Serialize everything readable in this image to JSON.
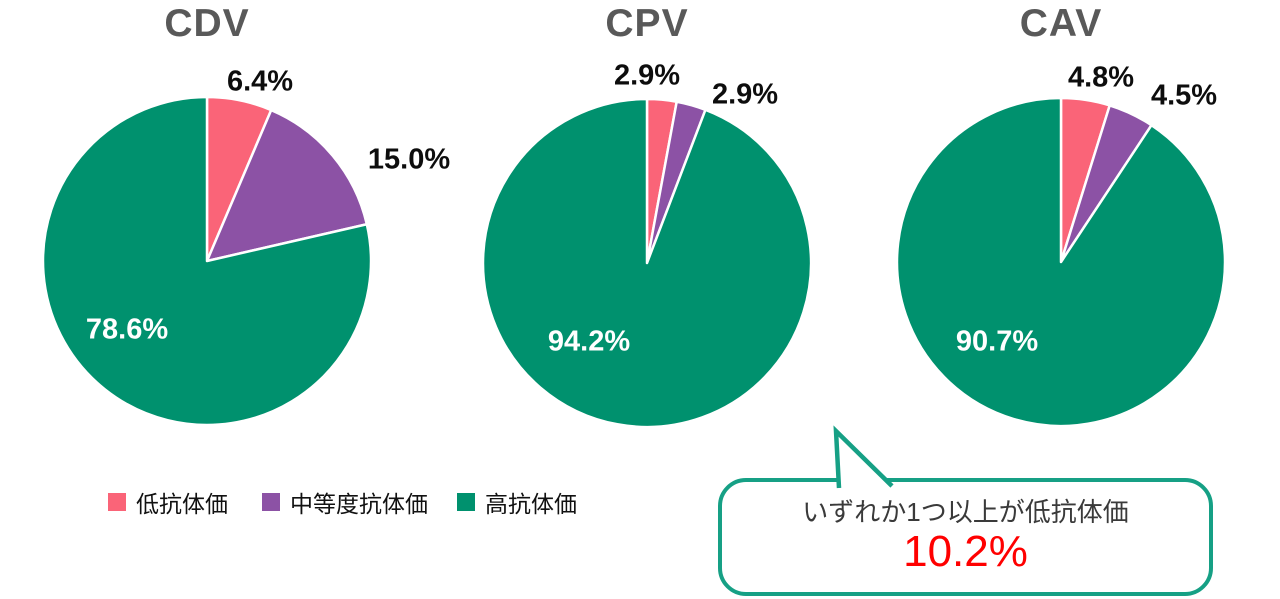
{
  "chart_data": [
    {
      "type": "pie",
      "title": "CDV",
      "categories": [
        "低抗体価",
        "中等度抗体価",
        "高抗体価"
      ],
      "values": [
        6.4,
        15.0,
        78.6
      ],
      "value_labels": [
        "6.4%",
        "15.0%",
        "78.6%"
      ],
      "colors": [
        "#fa6478",
        "#8c52a5",
        "#00916e"
      ],
      "unit": "%",
      "start_angle": "top",
      "direction": "clockwise"
    },
    {
      "type": "pie",
      "title": "CPV",
      "categories": [
        "低抗体価",
        "中等度抗体価",
        "高抗体価"
      ],
      "values": [
        2.9,
        2.9,
        94.2
      ],
      "value_labels": [
        "2.9%",
        "2.9%",
        "94.2%"
      ],
      "colors": [
        "#fa6478",
        "#8c52a5",
        "#00916e"
      ],
      "unit": "%",
      "start_angle": "top",
      "direction": "clockwise"
    },
    {
      "type": "pie",
      "title": "CAV",
      "categories": [
        "低抗体価",
        "中等度抗体価",
        "高抗体価"
      ],
      "values": [
        4.8,
        4.5,
        90.7
      ],
      "value_labels": [
        "4.8%",
        "4.5%",
        "90.7%"
      ],
      "colors": [
        "#fa6478",
        "#8c52a5",
        "#00916e"
      ],
      "unit": "%",
      "start_angle": "top",
      "direction": "clockwise"
    }
  ],
  "legend": {
    "items": [
      {
        "label": "低抗体価",
        "color": "#fa6478"
      },
      {
        "label": "中等度抗体価",
        "color": "#8c52a5"
      },
      {
        "label": "高抗体価",
        "color": "#00916e"
      }
    ]
  },
  "callout": {
    "line1": "いずれか1つ以上が低抗体価",
    "value": "10.2%",
    "value_color": "#ff0000",
    "border_color": "#16a085"
  },
  "style": {
    "title_color": "#595959",
    "slice_separator_color": "#ffffff"
  }
}
